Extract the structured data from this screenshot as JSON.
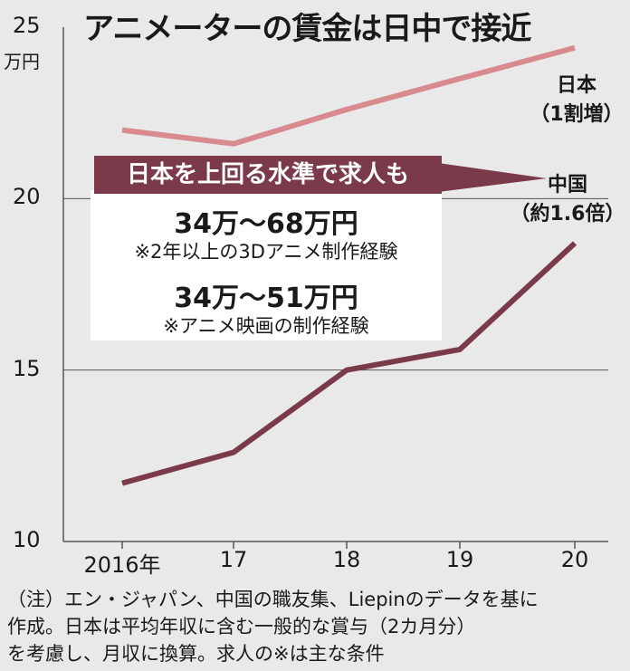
{
  "title": "アニメーターの賃金は日中で接近",
  "chart_data": {
    "type": "line",
    "ylabel": "万円",
    "ylim": [
      10,
      25
    ],
    "y_ticks": [
      10,
      15,
      20,
      25
    ],
    "x": [
      "2016年",
      "17",
      "18",
      "19",
      "20"
    ],
    "series": [
      {
        "name": "日本",
        "note": "（1割増）",
        "color": "#d98a8e",
        "values": [
          22.0,
          21.6,
          22.6,
          23.5,
          24.4
        ]
      },
      {
        "name": "中国",
        "note": "（約1.6倍）",
        "color": "#7a3a4a",
        "values": [
          11.7,
          12.6,
          15.0,
          15.6,
          18.7
        ]
      }
    ]
  },
  "callout": {
    "header": "日本を上回る水準で求人も",
    "items": [
      {
        "range": "34万～68万円",
        "condition": "※2年以上の3Dアニメ制作経験"
      },
      {
        "range": "34万～51万円",
        "condition": "※アニメ映画の制作経験"
      }
    ]
  },
  "notes": [
    "（注）エン・ジャパン、中国の職友集、Liepinのデータを基に",
    "作成。日本は平均年収に含む一般的な賞与（2カ月分）",
    "を考慮し、月収に換算。求人の※は主な条件"
  ]
}
